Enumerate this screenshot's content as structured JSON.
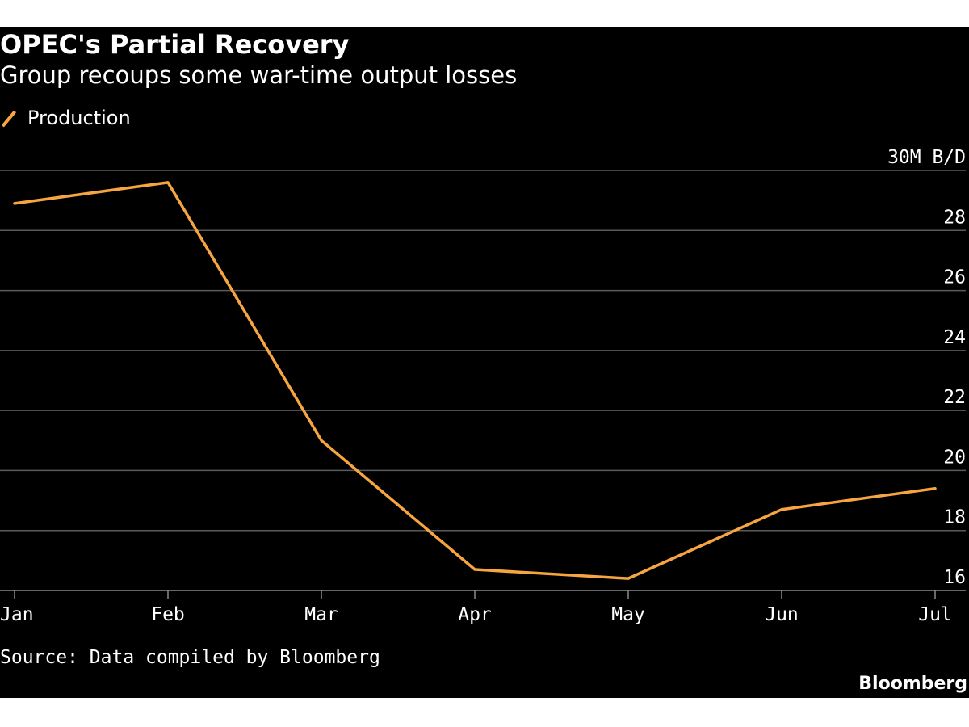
{
  "header": {
    "title": "OPEC's Partial Recovery",
    "subtitle": "Group recoups some war-time output losses"
  },
  "footer": {
    "source": "Source: Data compiled by Bloomberg",
    "brand": "Bloomberg"
  },
  "colors": {
    "background": "#000000",
    "line": "#f7a541",
    "grid": "#5a5a5a",
    "text": "#ffffff"
  },
  "chart_data": {
    "type": "line",
    "title": "OPEC's Partial Recovery",
    "subtitle": "Group recoups some war-time output losses",
    "categories": [
      "Jan",
      "Feb",
      "Mar",
      "Apr",
      "May",
      "Jun",
      "Jul"
    ],
    "series": [
      {
        "name": "Production",
        "values": [
          28.9,
          29.6,
          21.0,
          16.7,
          16.4,
          18.7,
          19.4
        ]
      }
    ],
    "y_ticks": [
      {
        "value": 16,
        "label": "16"
      },
      {
        "value": 18,
        "label": "18"
      },
      {
        "value": 20,
        "label": "20"
      },
      {
        "value": 22,
        "label": "22"
      },
      {
        "value": 24,
        "label": "24"
      },
      {
        "value": 26,
        "label": "26"
      },
      {
        "value": 28,
        "label": "28"
      },
      {
        "value": 30,
        "label": "30M B/D"
      }
    ],
    "ylim": [
      16,
      30
    ],
    "grid": true,
    "y_axis_side": "right",
    "legend_position": "top-left"
  }
}
